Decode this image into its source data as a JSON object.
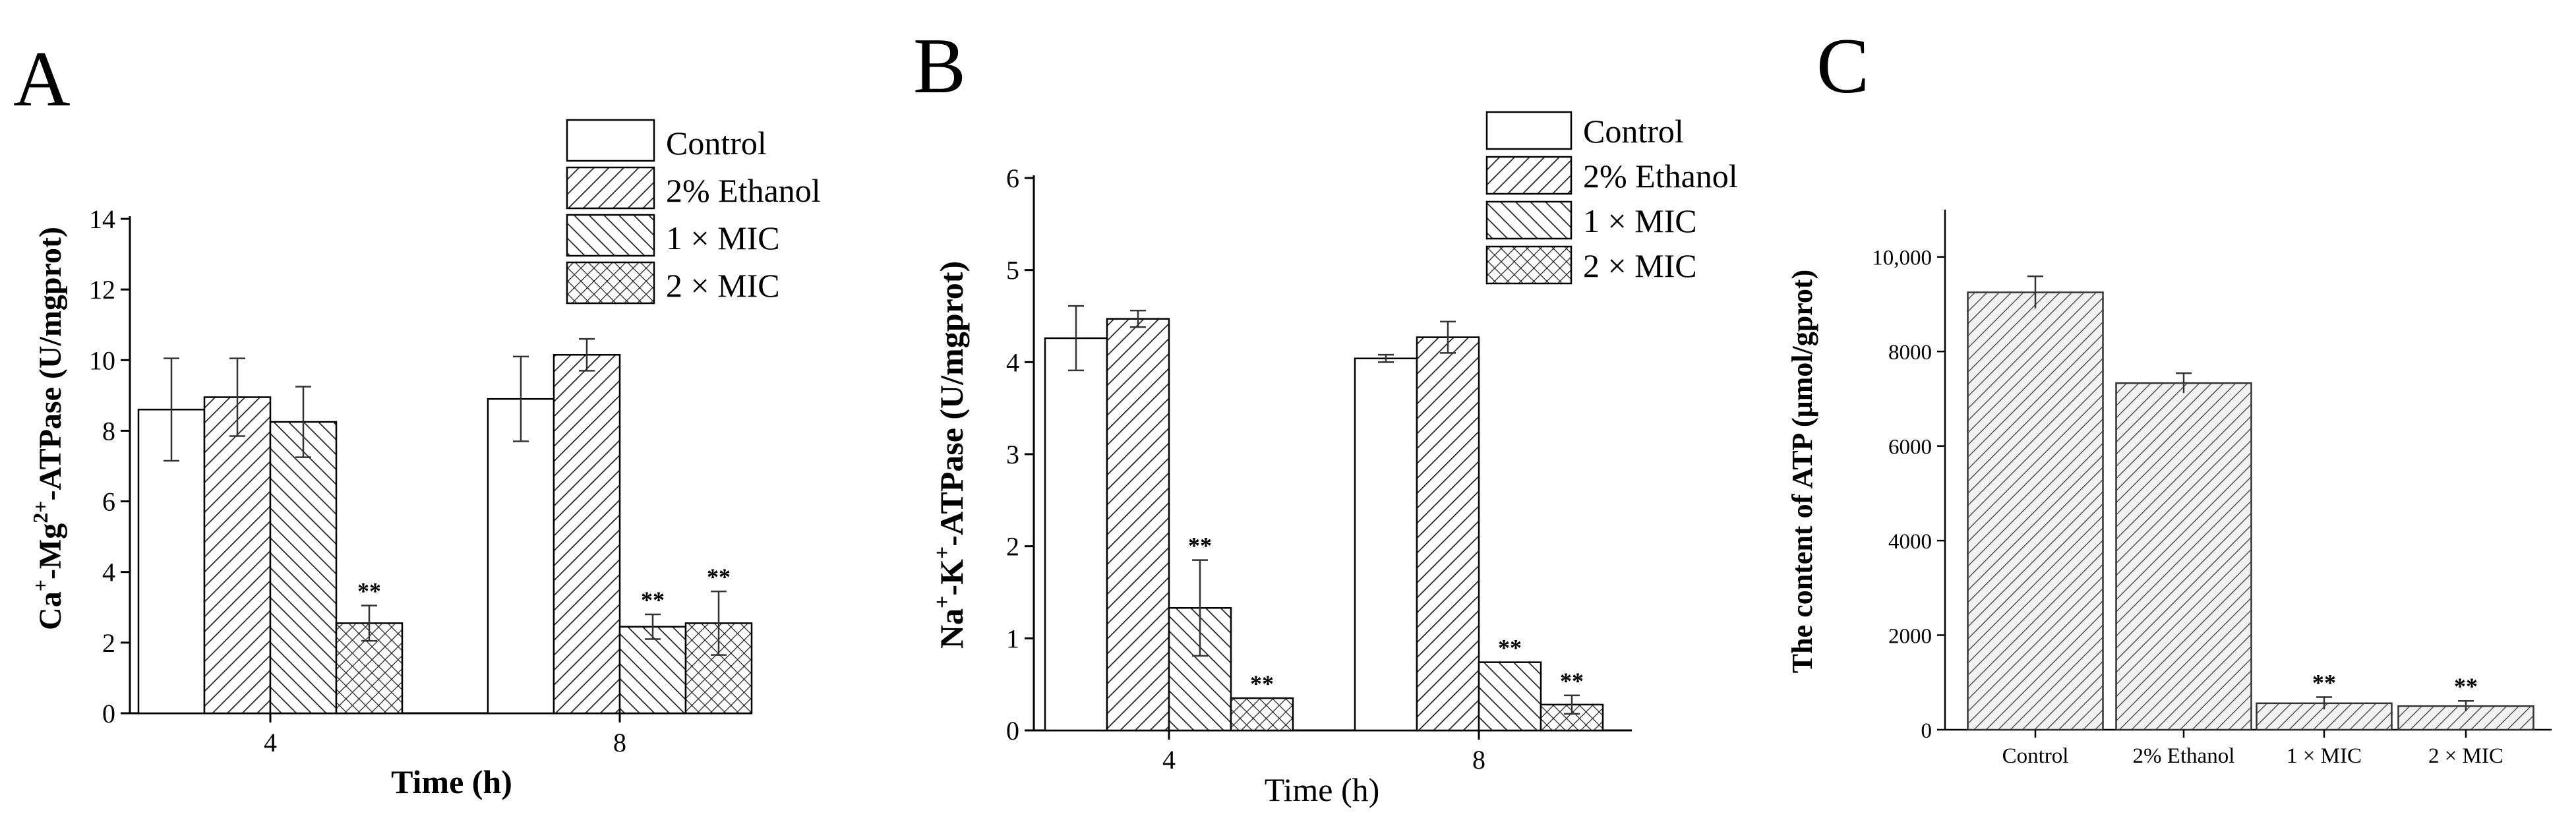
{
  "panels": {
    "A": {
      "letter": "A"
    },
    "B": {
      "letter": "B"
    },
    "C": {
      "letter": "C"
    }
  },
  "legend": {
    "items": [
      "Control",
      "2% Ethanol",
      "1 × MIC",
      "2 × MIC"
    ]
  },
  "chart_data": [
    {
      "panel": "A",
      "type": "bar",
      "ylabel_parts": {
        "a": "Ca",
        "a_sup": "+",
        "b": "-Mg",
        "b_sup": "2+",
        "c": "-ATPase (U/mgprot)"
      },
      "xlabel": "Time (h)",
      "categories": [
        "4",
        "8"
      ],
      "ylim": [
        0,
        14
      ],
      "yticks": [
        "0",
        "2",
        "4",
        "6",
        "8",
        "10",
        "12",
        "14"
      ],
      "series": [
        {
          "name": "Control",
          "values": [
            8.6,
            8.9
          ],
          "errors": [
            1.45,
            1.2
          ],
          "significance": [
            "",
            ""
          ]
        },
        {
          "name": "2% Ethanol",
          "values": [
            8.95,
            10.15
          ],
          "errors": [
            1.1,
            0.45
          ],
          "significance": [
            "",
            ""
          ]
        },
        {
          "name": "1 × MIC",
          "values": [
            8.25,
            2.45
          ],
          "errors": [
            1.0,
            0.35
          ],
          "significance": [
            "",
            "**"
          ]
        },
        {
          "name": "2 × MIC",
          "values": [
            2.55,
            2.55
          ],
          "errors": [
            0.5,
            0.9
          ],
          "significance": [
            "**",
            "**"
          ]
        }
      ]
    },
    {
      "panel": "B",
      "type": "bar",
      "ylabel_parts": {
        "a": "Na",
        "a_sup": "+",
        "b": "-K",
        "b_sup": "+",
        "c": "-ATPase (U/mgprot)"
      },
      "xlabel": "Time (h)",
      "categories": [
        "4",
        "8"
      ],
      "ylim": [
        0,
        6
      ],
      "yticks": [
        "0",
        "1",
        "2",
        "3",
        "4",
        "5",
        "6"
      ],
      "series": [
        {
          "name": "Control",
          "values": [
            4.26,
            4.04
          ],
          "errors": [
            0.35,
            0.04
          ],
          "significance": [
            "",
            ""
          ]
        },
        {
          "name": "2% Ethanol",
          "values": [
            4.47,
            4.27
          ],
          "errors": [
            0.09,
            0.17
          ],
          "significance": [
            "",
            ""
          ]
        },
        {
          "name": "1 × MIC",
          "values": [
            1.33,
            0.74
          ],
          "errors": [
            0.52,
            0.0
          ],
          "significance": [
            "**",
            "**"
          ]
        },
        {
          "name": "2 × MIC",
          "values": [
            0.35,
            0.28
          ],
          "errors": [
            0.0,
            0.1
          ],
          "significance": [
            "**",
            "**"
          ]
        }
      ]
    },
    {
      "panel": "C",
      "type": "bar",
      "ylabel": "The content of ATP (μmol/gprot)",
      "categories": [
        "Control",
        "2% Ethanol",
        "1 × MIC",
        "2 × MIC"
      ],
      "ylim": [
        0,
        11000
      ],
      "yticks": [
        "0",
        "2000",
        "4000",
        "6000",
        "8000",
        "10,000"
      ],
      "values": [
        9250,
        7330,
        560,
        500
      ],
      "errors": [
        340,
        210,
        130,
        110
      ],
      "significance": [
        "",
        "",
        "**",
        "**"
      ]
    }
  ]
}
